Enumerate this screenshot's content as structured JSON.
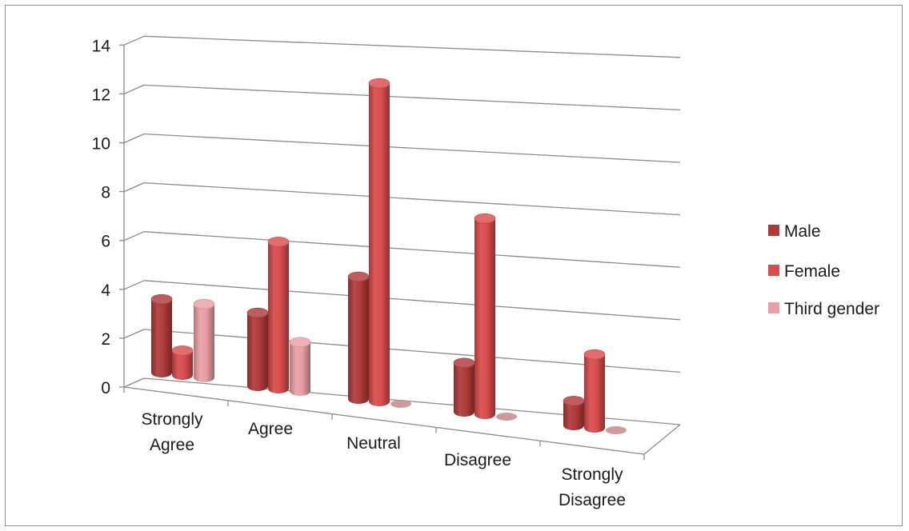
{
  "chart_data": {
    "type": "bar",
    "style": "3d-cylinder",
    "categories": [
      [
        "Strongly",
        "Agree"
      ],
      [
        "Agree"
      ],
      [
        "Neutral"
      ],
      [
        "Disagree"
      ],
      [
        "Strongly",
        "Disagree"
      ]
    ],
    "series": [
      {
        "name": "Male",
        "values": [
          3,
          3,
          5,
          2,
          1
        ],
        "color": "#b03a3a"
      },
      {
        "name": "Female",
        "values": [
          1,
          6,
          13,
          8,
          3
        ],
        "color": "#d94c4c"
      },
      {
        "name": "Third gender",
        "values": [
          3,
          2,
          0,
          0,
          0
        ],
        "color": "#e8a0a4"
      }
    ],
    "ylim": [
      0,
      14
    ],
    "yticks": [
      "0",
      "2",
      "4",
      "6",
      "8",
      "10",
      "12",
      "14"
    ],
    "grid": true,
    "legend_position": "right"
  }
}
